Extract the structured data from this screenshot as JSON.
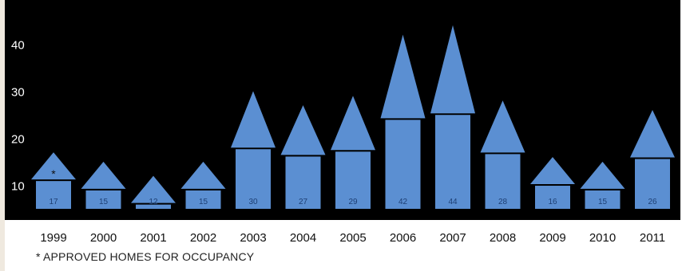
{
  "chart_data": {
    "type": "bar",
    "categories": [
      "1999",
      "2000",
      "2001",
      "2002",
      "2003",
      "2004",
      "2005",
      "2006",
      "2007",
      "2008",
      "2009",
      "2010",
      "2011"
    ],
    "values": [
      17,
      15,
      12,
      15,
      30,
      27,
      29,
      42,
      44,
      28,
      16,
      15,
      26
    ],
    "yticks": [
      "10",
      "20",
      "30",
      "40"
    ],
    "ylim": [
      5,
      48
    ],
    "marker_category": "1999",
    "marker_text": "*",
    "footnote": "* APPROVED HOMES FOR OCCUPANCY",
    "colors": {
      "bar": "#5b8fd2",
      "background": "#000000",
      "category_text": "#111111",
      "tick_text": "#ffffff",
      "value_text": "#1d3f73"
    }
  }
}
